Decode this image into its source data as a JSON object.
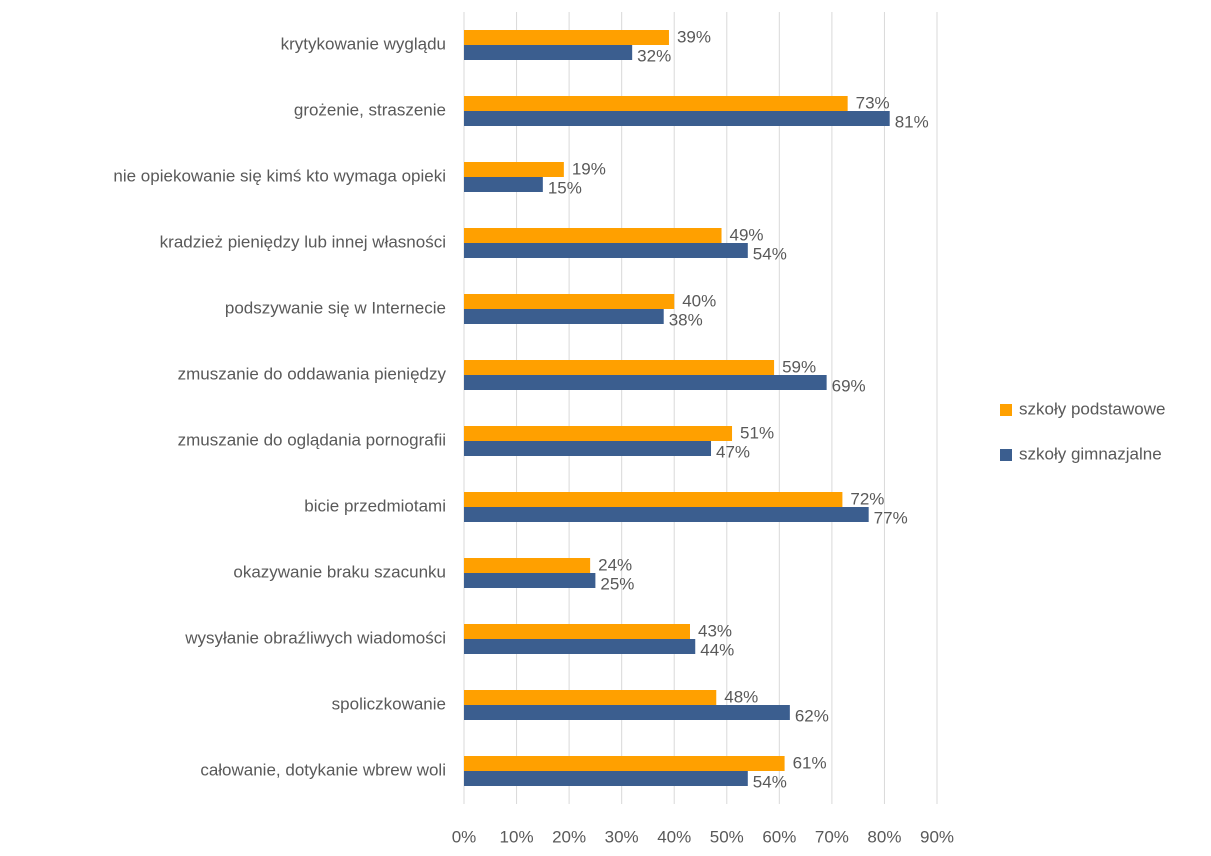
{
  "chart_data": {
    "type": "hbar",
    "categories": [
      "krytykowanie wyglądu",
      "grożenie, straszenie",
      "nie opiekowanie się kimś kto wymaga opieki",
      "kradzież pieniędzy lub innej własności",
      "podszywanie się w Internecie",
      "zmuszanie do oddawania pieniędzy",
      "zmuszanie do oglądania pornografii",
      "bicie przedmiotami",
      "okazywanie braku szacunku",
      "wysyłanie obraźliwych wiadomości",
      "spoliczkowanie",
      "całowanie, dotykanie wbrew woli"
    ],
    "series": [
      {
        "name": "szkoły podstawowe",
        "color": "#ffa000",
        "values": [
          39,
          73,
          19,
          49,
          40,
          59,
          51,
          72,
          24,
          43,
          48,
          61
        ],
        "value_labels": [
          "39%",
          "73%",
          "19%",
          "49%",
          "40%",
          "59%",
          "51%",
          "72%",
          "24%",
          "43%",
          "48%",
          "61%"
        ]
      },
      {
        "name": "szkoły gimnazjalne",
        "color": "#3b5e8f",
        "values": [
          32,
          81,
          15,
          54,
          38,
          69,
          47,
          77,
          25,
          44,
          62,
          54
        ],
        "value_labels": [
          "32%",
          "81%",
          "15%",
          "54%",
          "38%",
          "69%",
          "47%",
          "77%",
          "25%",
          "44%",
          "62%",
          "54%"
        ]
      }
    ],
    "xlim": [
      0,
      90
    ],
    "xticks": [
      {
        "value": 0,
        "label": "0%"
      },
      {
        "value": 10,
        "label": "10%"
      },
      {
        "value": 20,
        "label": "20%"
      },
      {
        "value": 30,
        "label": "30%"
      },
      {
        "value": 40,
        "label": "40%"
      },
      {
        "value": 50,
        "label": "50%"
      },
      {
        "value": 60,
        "label": "60%"
      },
      {
        "value": 70,
        "label": "70%"
      },
      {
        "value": 80,
        "label": "80%"
      },
      {
        "value": 90,
        "label": "90%"
      }
    ],
    "grid": true,
    "legend": "right"
  }
}
